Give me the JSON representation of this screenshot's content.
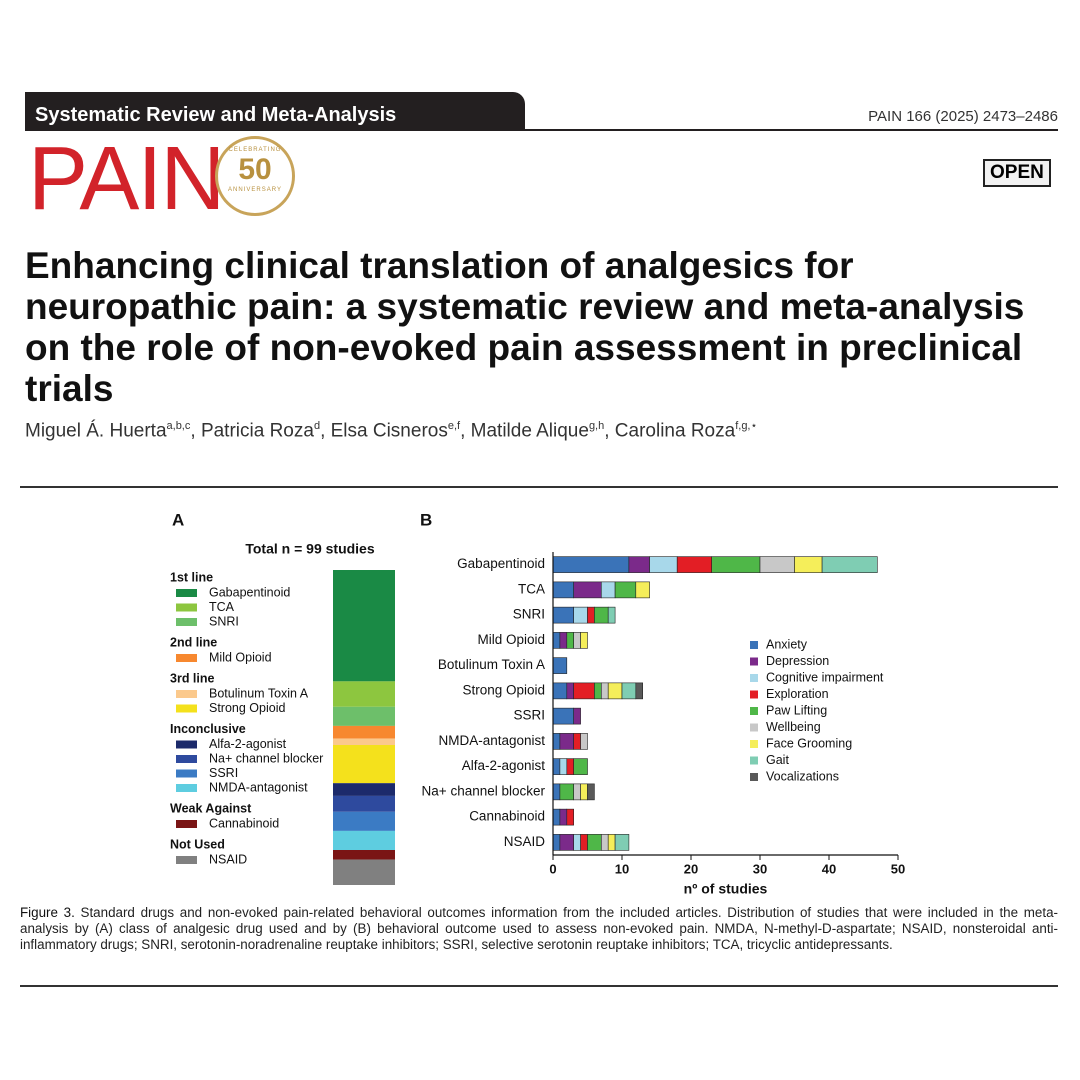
{
  "header": {
    "section": "Systematic Review and Meta-Analysis",
    "citation": "PAIN 166 (2025) 2473–2486",
    "journal": "PAIN",
    "badge_top": "CELEBRATING",
    "badge_number": "50",
    "badge_bottom": "ANNIVERSARY",
    "access": "OPEN"
  },
  "title": "Enhancing clinical translation of analgesics for neuropathic pain: a systematic review and meta-analysis on the role of non-evoked pain assessment in preclinical trials",
  "author_separator": ", ",
  "authors": [
    {
      "name": "Miguel Á. Huerta",
      "sup": "a,b,c"
    },
    {
      "name": "Patricia Roza",
      "sup": "d"
    },
    {
      "name": "Elsa Cisneros",
      "sup": "e,f"
    },
    {
      "name": "Matilde Alique",
      "sup": "g,h"
    },
    {
      "name": "Carolina Roza",
      "sup": "f,g,⋆"
    }
  ],
  "chart_data": [
    {
      "type": "stacked-bar",
      "panel": "A",
      "title": "Total n = 99 studies",
      "groups": [
        {
          "name": "1st line",
          "series": [
            {
              "name": "Gabapentinoid",
              "color": "#1a8a45",
              "values": [
                35
              ]
            },
            {
              "name": "TCA",
              "color": "#8dc63f",
              "values": [
                8
              ]
            },
            {
              "name": "SNRI",
              "color": "#6dbf6a",
              "values": [
                6
              ]
            }
          ]
        },
        {
          "name": "2nd line",
          "series": [
            {
              "name": "Mild Opioid",
              "color": "#f7882f",
              "values": [
                4
              ]
            }
          ]
        },
        {
          "name": "3rd line",
          "series": [
            {
              "name": "Botulinum Toxin A",
              "color": "#fbc98c",
              "values": [
                2
              ]
            },
            {
              "name": "Strong Opioid",
              "color": "#f4e11c",
              "values": [
                12
              ]
            }
          ]
        },
        {
          "name": "Inconclusive",
          "series": [
            {
              "name": "Alfa-2-agonist",
              "color": "#1c2a6b",
              "values": [
                4
              ]
            },
            {
              "name": "Na+ channel blocker",
              "color": "#2e4a9e",
              "values": [
                5
              ]
            },
            {
              "name": "SSRI",
              "color": "#3b7bc4",
              "values": [
                6
              ]
            },
            {
              "name": "NMDA-antagonist",
              "color": "#5ecde0",
              "values": [
                6
              ]
            }
          ]
        },
        {
          "name": "Weak Against",
          "series": [
            {
              "name": "Cannabinoid",
              "color": "#7a1515",
              "values": [
                3
              ]
            }
          ]
        },
        {
          "name": "Not Used",
          "series": [
            {
              "name": "NSAID",
              "color": "#808080",
              "values": [
                8
              ]
            }
          ]
        }
      ]
    },
    {
      "type": "horizontal-stacked-bar",
      "panel": "B",
      "x_label": "nº of studies",
      "categories": [
        "Gabapentinoid",
        "TCA",
        "SNRI",
        "Mild Opioid",
        "Botulinum Toxin A",
        "Strong Opioid",
        "SSRI",
        "NMDA-antagonist",
        "Alfa-2-agonist",
        "Na+ channel blocker",
        "Cannabinoid",
        "NSAID"
      ],
      "xlim": [
        0,
        50
      ],
      "xticks": [
        0,
        10,
        20,
        30,
        40,
        50
      ],
      "series": [
        {
          "name": "Anxiety",
          "color": "#3a73b8",
          "values": [
            11,
            3,
            3,
            1,
            2,
            2,
            3,
            1,
            1,
            1,
            1,
            1
          ]
        },
        {
          "name": "Depression",
          "color": "#7b2a8a",
          "values": [
            3,
            4,
            0,
            1,
            0,
            1,
            1,
            2,
            0,
            0,
            1,
            2
          ]
        },
        {
          "name": "Cognitive impairment",
          "color": "#a8d8ea",
          "values": [
            4,
            2,
            2,
            0,
            0,
            0,
            0,
            0,
            1,
            0,
            0,
            1
          ]
        },
        {
          "name": "Exploration",
          "color": "#e31e25",
          "values": [
            5,
            0,
            1,
            0,
            0,
            3,
            0,
            1,
            1,
            0,
            1,
            1
          ]
        },
        {
          "name": "Paw Lifting",
          "color": "#4fb748",
          "values": [
            7,
            3,
            2,
            1,
            0,
            1,
            0,
            0,
            2,
            2,
            0,
            2
          ]
        },
        {
          "name": "Wellbeing",
          "color": "#c8c8c8",
          "values": [
            5,
            0,
            0,
            1,
            0,
            1,
            0,
            1,
            0,
            1,
            0,
            1
          ]
        },
        {
          "name": "Face Grooming",
          "color": "#f5ee5a",
          "values": [
            4,
            2,
            0,
            1,
            0,
            2,
            0,
            0,
            0,
            1,
            0,
            1
          ]
        },
        {
          "name": "Gait",
          "color": "#7fcdb3",
          "values": [
            8,
            0,
            1,
            0,
            0,
            2,
            0,
            0,
            0,
            0,
            0,
            2
          ]
        },
        {
          "name": "Vocalizations",
          "color": "#595959",
          "values": [
            0,
            0,
            0,
            0,
            0,
            1,
            0,
            0,
            0,
            1,
            0,
            0
          ]
        }
      ]
    }
  ],
  "caption": {
    "label": "Figure 3.",
    "text": "Standard drugs and non-evoked pain-related behavioral outcomes information from the included articles. Distribution of studies that were included in the meta-analysis by (A) class of analgesic drug used and by (B) behavioral outcome used to assess non-evoked pain. NMDA, N-methyl-D-aspartate; NSAID, nonsteroidal anti-inflammatory drugs; SNRI, serotonin-noradrenaline reuptake inhibitors; SSRI, selective serotonin reuptake inhibitors; TCA, tricyclic antidepressants."
  }
}
